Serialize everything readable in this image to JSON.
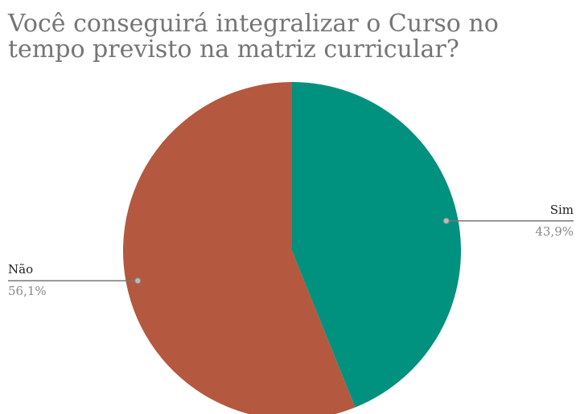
{
  "chart_data": {
    "type": "pie",
    "title": "Você conseguirá integralizar o Curso no tempo previsto na matriz curricular?",
    "categories": [
      "Sim",
      "Não"
    ],
    "values": [
      43.9,
      56.1
    ],
    "value_labels": [
      "43,9%",
      "56,1%"
    ],
    "colors": [
      "#00917f",
      "#b4583f"
    ]
  }
}
